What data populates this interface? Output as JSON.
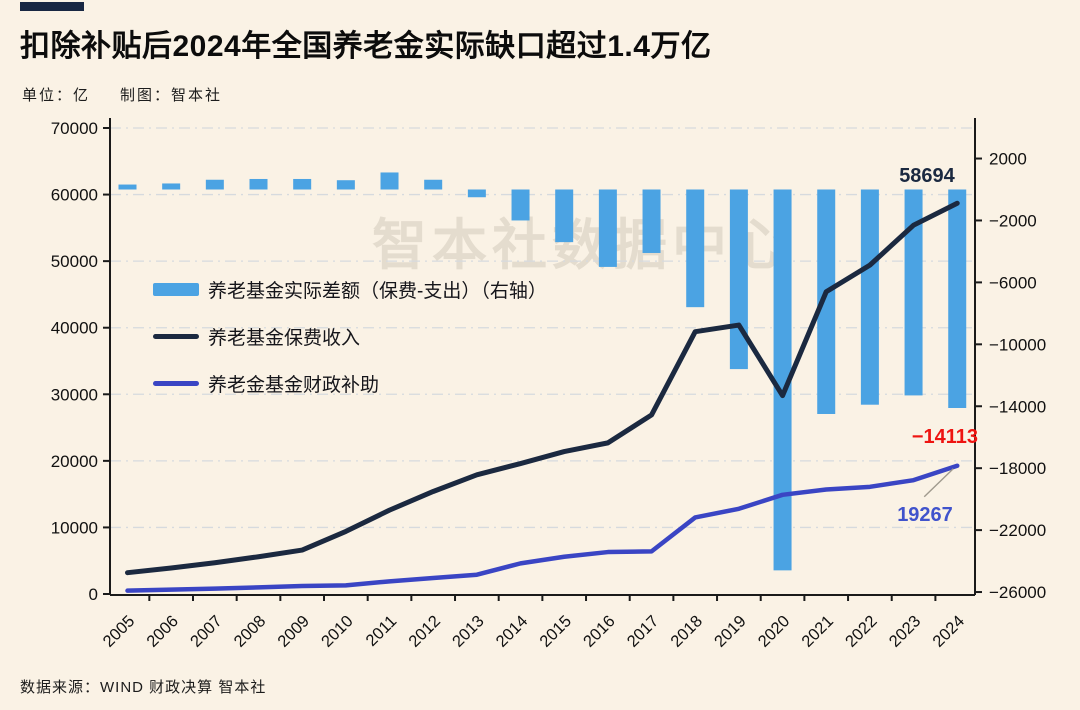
{
  "header": {
    "title": "扣除补贴后2024年全国养老金实际缺口超过1.4万亿",
    "unit_label": "单位：亿",
    "credit_label": "制图：智本社"
  },
  "watermark": {
    "text": "智本社数据中心"
  },
  "footer": {
    "source": "数据来源：WIND 财政决算 智本社"
  },
  "annotations": {
    "premium_2024": "58694",
    "gap_2024": "−14113",
    "subsidy_2024": "19267"
  },
  "colors": {
    "background": "#faf2e5",
    "accent_block": "#182742",
    "bar": "#4ba3e3",
    "premium_line": "#1b2940",
    "subsidy_line": "#3a45c4",
    "gap_label": "#ee1411",
    "subsidy_label": "#4053cc",
    "grid": "#d6dade",
    "axis": "#1a1a1a",
    "leader": "#a09a8e"
  },
  "chart_data": {
    "type": "bar+line combo, dual axis",
    "title": "扣除补贴后2024年全国养老金实际缺口超过1.4万亿",
    "unit": "亿",
    "categories": [
      "2005",
      "2006",
      "2007",
      "2008",
      "2009",
      "2010",
      "2011",
      "2012",
      "2013",
      "2014",
      "2015",
      "2016",
      "2017",
      "2018",
      "2019",
      "2020",
      "2021",
      "2022",
      "2023",
      "2024"
    ],
    "series": [
      {
        "name": "养老基金实际差额（保费-支出）（右轴）",
        "type": "bar",
        "axis": "right",
        "color": "#4ba3e3",
        "values": [
          320,
          390,
          630,
          680,
          680,
          600,
          1100,
          630,
          -500,
          -2000,
          -3400,
          -5000,
          -4100,
          -7600,
          -11600,
          -24600,
          -14500,
          -13900,
          -13300,
          -14113
        ]
      },
      {
        "name": "养老基金保费收入",
        "type": "line",
        "axis": "left",
        "color": "#1b2940",
        "values": [
          3200,
          3900,
          4700,
          5600,
          6600,
          9400,
          12600,
          15400,
          17900,
          19600,
          21400,
          22700,
          26900,
          39400,
          40400,
          29800,
          45400,
          49400,
          55400,
          58694
        ]
      },
      {
        "name": "养老金基金财政补助",
        "type": "line",
        "axis": "left",
        "color": "#3a45c4",
        "values": [
          500,
          650,
          800,
          1000,
          1200,
          1300,
          1900,
          2400,
          2900,
          4600,
          5600,
          6300,
          6400,
          11500,
          12800,
          14900,
          15700,
          16100,
          17100,
          19267
        ]
      }
    ],
    "axes": {
      "left": {
        "min": 0,
        "max": 70000,
        "ticks": [
          {
            "v": 0,
            "label": "0"
          },
          {
            "v": 10000,
            "label": "10000"
          },
          {
            "v": 20000,
            "label": "20000"
          },
          {
            "v": 30000,
            "label": "30000"
          },
          {
            "v": 40000,
            "label": "40000"
          },
          {
            "v": 50000,
            "label": "50000"
          },
          {
            "v": 60000,
            "label": "60000"
          },
          {
            "v": 70000,
            "label": "70000"
          }
        ]
      },
      "right": {
        "min": -26000,
        "max": 2000,
        "ticks": [
          {
            "v": 2000,
            "label": "2000"
          },
          {
            "v": -2000,
            "label": "−2000"
          },
          {
            "v": -6000,
            "label": "−6000"
          },
          {
            "v": -10000,
            "label": "−10000"
          },
          {
            "v": -14000,
            "label": "−14000"
          },
          {
            "v": -18000,
            "label": "−18000"
          },
          {
            "v": -22000,
            "label": "−22000"
          },
          {
            "v": -26000,
            "label": "−26000"
          }
        ]
      }
    },
    "grid": "horizontal dash-dot lines at left-axis ticks 10000..70000",
    "legend_position": "inside plot, upper-left area",
    "annotated_points": {
      "养老基金保费收入 2024": 58694,
      "养老基金实际差额 2024": -14113,
      "养老金基金财政补助 2024": 19267
    }
  }
}
